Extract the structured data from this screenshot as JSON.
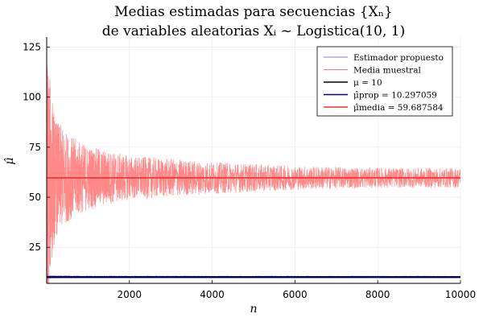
{
  "chart_data": {
    "type": "line",
    "title": [
      "Medias estimadas para secuencias {Xₙ}",
      "de variables aleatorias Xᵢ ~ Logistica(10, 1)"
    ],
    "xlabel": "n",
    "ylabel": "μ̂",
    "xlim": [
      1,
      10000
    ],
    "ylim": [
      7,
      130
    ],
    "xticks": [
      2000,
      4000,
      6000,
      8000,
      10000
    ],
    "yticks": [
      25,
      50,
      75,
      100,
      125
    ],
    "grid": true,
    "legend_position": "top-right",
    "legend": [
      "Estimador propuesto",
      "Media muestral",
      "μ = 10",
      "μ̂prop = 10.297059",
      "μ̂media = 59.687584"
    ],
    "series": [
      {
        "name": "Estimador propuesto",
        "kind": "noisy",
        "color": "#7b7bef",
        "center": 10.297059,
        "envelope": [
          [
            1,
            1.5
          ],
          [
            100,
            0.8
          ],
          [
            1000,
            0.4
          ],
          [
            10000,
            0.25
          ]
        ]
      },
      {
        "name": "Media muestral",
        "kind": "noisy",
        "color": "#ff7b7b",
        "center": 59.687584,
        "envelope": [
          [
            1,
            62
          ],
          [
            50,
            55
          ],
          [
            200,
            30
          ],
          [
            500,
            22
          ],
          [
            1000,
            16
          ],
          [
            2000,
            11
          ],
          [
            4000,
            8
          ],
          [
            6000,
            6
          ],
          [
            8000,
            5
          ],
          [
            10000,
            5
          ]
        ]
      },
      {
        "name": "μ = 10",
        "kind": "hline",
        "value": 10,
        "color": "#000000"
      },
      {
        "name": "μ̂prop = 10.297059",
        "kind": "hline",
        "value": 10.297059,
        "color": "#00008b"
      },
      {
        "name": "μ̂media = 59.687584",
        "kind": "hline",
        "value": 59.687584,
        "color": "#e8342f"
      }
    ]
  }
}
